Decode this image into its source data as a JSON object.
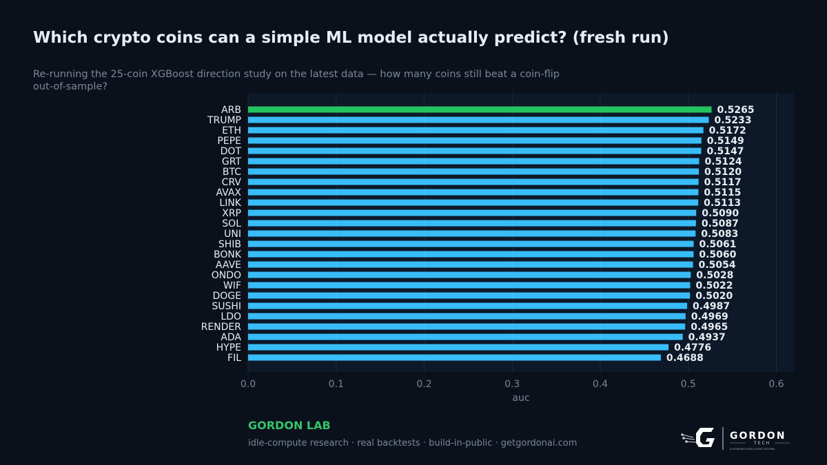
{
  "title": "Which crypto coins can a simple ML model actually predict? (fresh run)",
  "subtitle": "Re-running the 25-coin XGBoost direction study on the latest data — how many coins still beat a coin-flip out-of-sample?",
  "chart_data": {
    "type": "bar",
    "orientation": "horizontal",
    "categories": [
      "ARB",
      "TRUMP",
      "ETH",
      "PEPE",
      "DOT",
      "GRT",
      "BTC",
      "CRV",
      "AVAX",
      "LINK",
      "XRP",
      "SOL",
      "UNI",
      "SHIB",
      "BONK",
      "AAVE",
      "ONDO",
      "WIF",
      "DOGE",
      "SUSHI",
      "LDO",
      "RENDER",
      "ADA",
      "HYPE",
      "FIL"
    ],
    "values": [
      0.5265,
      0.5233,
      0.5172,
      0.5149,
      0.5147,
      0.5124,
      0.512,
      0.5117,
      0.5115,
      0.5113,
      0.509,
      0.5087,
      0.5083,
      0.5061,
      0.506,
      0.5054,
      0.5028,
      0.5022,
      0.502,
      0.4987,
      0.4969,
      0.4965,
      0.4937,
      0.4776,
      0.4688
    ],
    "value_labels": [
      "0.5265",
      "0.5233",
      "0.5172",
      "0.5149",
      "0.5147",
      "0.5124",
      "0.5120",
      "0.5117",
      "0.5115",
      "0.5113",
      "0.5090",
      "0.5087",
      "0.5083",
      "0.5061",
      "0.5060",
      "0.5054",
      "0.5028",
      "0.5022",
      "0.5020",
      "0.4987",
      "0.4969",
      "0.4965",
      "0.4937",
      "0.4776",
      "0.4688"
    ],
    "xlabel": "auc",
    "ylabel": "",
    "xlim": [
      0,
      0.62
    ],
    "xticks": [
      "0.0",
      "0.1",
      "0.2",
      "0.3",
      "0.4",
      "0.5",
      "0.6"
    ],
    "grid": true,
    "highlight_category": "ARB",
    "colors": {
      "bar": "#38bdf8",
      "highlight": "#22c55e",
      "plot_bg": "#0d1828",
      "grid": "#1f2b3b",
      "text": "#e8edf3",
      "muted": "#7b8797"
    }
  },
  "footer": {
    "brand": "GORDON LAB",
    "tagline": "idle-compute research · real backtests · build-in-public · getgordonai.com"
  },
  "logo": {
    "wordmark": "GORDON",
    "sub": "TECH",
    "motto": "AI-POWERED INTELLIGENT SYSTEMS"
  }
}
